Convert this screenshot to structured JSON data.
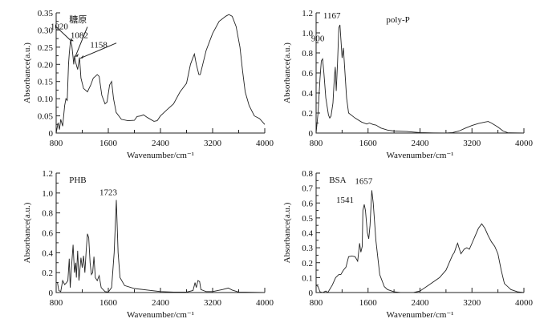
{
  "chart_data": [
    {
      "type": "line",
      "title": "糖原",
      "xlabel": "Wavenumber/cm⁻¹",
      "ylabel": "Absorbance(a.u.)",
      "xlim": [
        800,
        4000
      ],
      "ylim": [
        0,
        0.35
      ],
      "xticks": [
        "800",
        "1600",
        "2400",
        "3200",
        "4000"
      ],
      "yticks": [
        "0",
        "0.05",
        "0.10",
        "0.15",
        "0.20",
        "0.25",
        "0.30",
        "0.35"
      ],
      "annotations": [
        {
          "text": "1020",
          "x": 1020,
          "y": 0.27,
          "arrow": true
        },
        {
          "text": "1082",
          "x": 1082,
          "y": 0.225,
          "arrow": true
        },
        {
          "text": "1158",
          "x": 1158,
          "y": 0.22,
          "arrow": true
        }
      ],
      "x": [
        800,
        830,
        850,
        870,
        900,
        930,
        950,
        970,
        990,
        1000,
        1020,
        1040,
        1060,
        1070,
        1082,
        1100,
        1130,
        1158,
        1180,
        1220,
        1280,
        1330,
        1370,
        1400,
        1430,
        1460,
        1500,
        1550,
        1580,
        1620,
        1650,
        1680,
        1720,
        1800,
        1900,
        2000,
        2040,
        2100,
        2140,
        2200,
        2300,
        2350,
        2400,
        2500,
        2600,
        2700,
        2800,
        2860,
        2900,
        2920,
        2950,
        2990,
        3010,
        3100,
        3200,
        3300,
        3400,
        3450,
        3500,
        3560,
        3620,
        3660,
        3700,
        3760,
        3840,
        3920,
        4000
      ],
      "y": [
        0,
        0.03,
        0.01,
        0.04,
        0.02,
        0.08,
        0.1,
        0.095,
        0.2,
        0.23,
        0.27,
        0.255,
        0.22,
        0.2,
        0.225,
        0.205,
        0.185,
        0.22,
        0.16,
        0.13,
        0.12,
        0.14,
        0.16,
        0.165,
        0.17,
        0.165,
        0.11,
        0.085,
        0.09,
        0.14,
        0.15,
        0.1,
        0.06,
        0.04,
        0.036,
        0.037,
        0.048,
        0.05,
        0.053,
        0.045,
        0.034,
        0.036,
        0.05,
        0.068,
        0.085,
        0.12,
        0.145,
        0.2,
        0.22,
        0.23,
        0.2,
        0.17,
        0.17,
        0.24,
        0.29,
        0.325,
        0.34,
        0.345,
        0.34,
        0.31,
        0.25,
        0.18,
        0.12,
        0.08,
        0.05,
        0.042,
        0.025
      ]
    },
    {
      "type": "line",
      "title": "poly-P",
      "xlabel": "Wavenumber/cm⁻¹",
      "ylabel": "Absorbance(a.u.)",
      "xlim": [
        800,
        4000
      ],
      "ylim": [
        0,
        1.2
      ],
      "xticks": [
        "800",
        "1600",
        "2400",
        "3200",
        "4000"
      ],
      "yticks": [
        "0",
        "0.2",
        "0.4",
        "0.6",
        "0.8",
        "1.0",
        "1.2"
      ],
      "annotations": [
        {
          "text": "900",
          "x": 900,
          "y": 0.74,
          "arrow": false
        },
        {
          "text": "1167",
          "x": 1167,
          "y": 1.08,
          "arrow": false
        }
      ],
      "x": [
        800,
        830,
        860,
        880,
        900,
        920,
        950,
        990,
        1010,
        1030,
        1060,
        1080,
        1095,
        1110,
        1130,
        1150,
        1167,
        1185,
        1200,
        1220,
        1240,
        1270,
        1300,
        1400,
        1500,
        1580,
        1620,
        1680,
        1720,
        1800,
        1900,
        2000,
        2200,
        2400,
        2600,
        2800,
        2900,
        3000,
        3100,
        3200,
        3300,
        3400,
        3450,
        3500,
        3600,
        3680,
        3750,
        4000
      ],
      "y": [
        0,
        0.2,
        0.55,
        0.72,
        0.74,
        0.6,
        0.35,
        0.18,
        0.15,
        0.17,
        0.3,
        0.55,
        0.66,
        0.42,
        0.7,
        1.05,
        1.08,
        0.9,
        0.75,
        0.85,
        0.65,
        0.35,
        0.2,
        0.15,
        0.11,
        0.09,
        0.1,
        0.085,
        0.08,
        0.05,
        0.03,
        0.02,
        0.015,
        0.005,
        0.002,
        0,
        0.005,
        0.02,
        0.05,
        0.075,
        0.095,
        0.11,
        0.115,
        0.1,
        0.06,
        0.02,
        0.003,
        0
      ]
    },
    {
      "type": "line",
      "title": "PHB",
      "xlabel": "Wavenumber/cm⁻¹",
      "ylabel": "Absorbance(a.u.)",
      "xlim": [
        800,
        4000
      ],
      "ylim": [
        0,
        1.2
      ],
      "xticks": [
        "800",
        "1600",
        "2400",
        "3200",
        "4000"
      ],
      "yticks": [
        "0",
        "0.2",
        "0.4",
        "0.6",
        "0.8",
        "1.0",
        "1.2"
      ],
      "annotations": [
        {
          "text": "1723",
          "x": 1723,
          "y": 0.93,
          "arrow": false
        }
      ],
      "x": [
        800,
        820,
        840,
        870,
        900,
        930,
        960,
        980,
        1000,
        1015,
        1040,
        1060,
        1080,
        1100,
        1110,
        1130,
        1150,
        1180,
        1200,
        1220,
        1240,
        1260,
        1280,
        1300,
        1320,
        1340,
        1360,
        1380,
        1400,
        1430,
        1460,
        1490,
        1550,
        1600,
        1650,
        1690,
        1723,
        1750,
        1780,
        1850,
        2000,
        2200,
        2400,
        2600,
        2800,
        2900,
        2930,
        2950,
        2975,
        3000,
        3020,
        3100,
        3200,
        3350,
        3440,
        3500,
        3600,
        4000
      ],
      "y": [
        0.1,
        0.1,
        0.02,
        0.01,
        0.12,
        0.08,
        0.1,
        0.12,
        0.34,
        0.05,
        0.3,
        0.48,
        0.2,
        0.3,
        0.15,
        0.42,
        0.12,
        0.35,
        0.25,
        0.37,
        0.2,
        0.42,
        0.59,
        0.55,
        0.3,
        0.18,
        0.2,
        0.36,
        0.15,
        0.12,
        0.17,
        0.05,
        0.01,
        0.005,
        0.05,
        0.4,
        0.93,
        0.4,
        0.15,
        0.07,
        0.04,
        0.025,
        0.01,
        0.005,
        0.005,
        0.02,
        0.1,
        0.05,
        0.12,
        0.11,
        0.03,
        0.01,
        0.01,
        0.03,
        0.045,
        0.025,
        0.005,
        0
      ]
    },
    {
      "type": "line",
      "title": "BSA",
      "xlabel": "Wavenumber/cm⁻¹",
      "ylabel": "Absorbance(a.u.)",
      "xlim": [
        800,
        4000
      ],
      "ylim": [
        0,
        0.8
      ],
      "xticks": [
        "800",
        "1600",
        "2400",
        "3200",
        "4000"
      ],
      "yticks": [
        "0",
        "0.1",
        "0.2",
        "0.3",
        "0.4",
        "0.5",
        "0.6",
        "0.7",
        "0.8"
      ],
      "annotations": [
        {
          "text": "1541",
          "x": 1541,
          "y": 0.59,
          "arrow": false
        },
        {
          "text": "1657",
          "x": 1657,
          "y": 0.685,
          "arrow": false
        }
      ],
      "x": [
        800,
        830,
        860,
        900,
        950,
        980,
        1050,
        1100,
        1150,
        1180,
        1220,
        1260,
        1300,
        1350,
        1400,
        1440,
        1470,
        1490,
        1510,
        1520,
        1541,
        1560,
        1590,
        1610,
        1630,
        1657,
        1680,
        1720,
        1780,
        1850,
        1900,
        2000,
        2100,
        2300,
        2400,
        2500,
        2600,
        2700,
        2800,
        2850,
        2900,
        2930,
        2960,
        2980,
        3000,
        3030,
        3080,
        3120,
        3160,
        3200,
        3250,
        3300,
        3350,
        3400,
        3450,
        3500,
        3550,
        3600,
        3650,
        3700,
        3800,
        3900,
        4000
      ],
      "y": [
        0.05,
        0.04,
        0.005,
        0,
        0.01,
        0,
        0.05,
        0.1,
        0.12,
        0.12,
        0.15,
        0.17,
        0.24,
        0.245,
        0.24,
        0.21,
        0.33,
        0.27,
        0.31,
        0.55,
        0.59,
        0.55,
        0.4,
        0.36,
        0.45,
        0.685,
        0.6,
        0.35,
        0.12,
        0.04,
        0.02,
        0.005,
        0,
        0,
        0.01,
        0.04,
        0.07,
        0.1,
        0.15,
        0.2,
        0.25,
        0.27,
        0.31,
        0.33,
        0.3,
        0.26,
        0.29,
        0.3,
        0.29,
        0.33,
        0.38,
        0.43,
        0.46,
        0.43,
        0.38,
        0.34,
        0.31,
        0.26,
        0.15,
        0.06,
        0.02,
        0.005,
        0
      ]
    }
  ]
}
